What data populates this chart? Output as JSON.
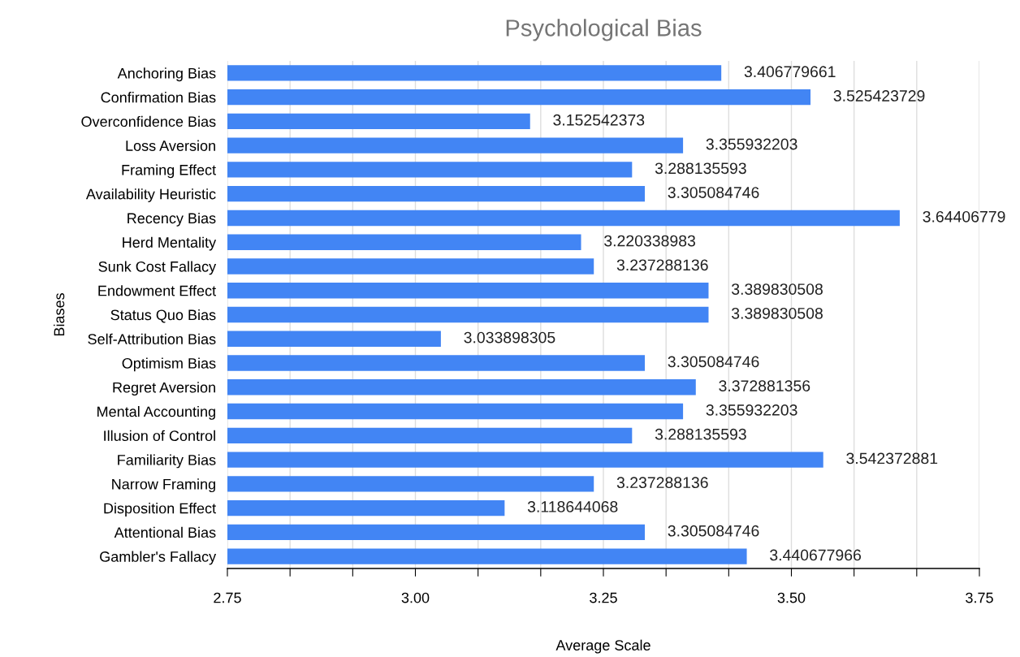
{
  "chart_data": {
    "type": "bar",
    "orientation": "horizontal",
    "title": "Psychological Bias",
    "xlabel": "Average Scale",
    "ylabel": "Biases",
    "categories": [
      "Anchoring Bias",
      "Confirmation Bias",
      "Overconfidence Bias",
      "Loss Aversion",
      "Framing Effect",
      "Availability Heuristic",
      "Recency Bias",
      "Herd Mentality",
      "Sunk Cost Fallacy",
      "Endowment Effect",
      "Status Quo Bias",
      "Self-Attribution Bias",
      "Optimism Bias",
      "Regret Aversion",
      "Mental Accounting",
      "Illusion of Control",
      "Familiarity Bias",
      "Narrow Framing",
      "Disposition Effect",
      "Attentional Bias",
      "Gambler's Fallacy"
    ],
    "values": [
      3.406779661,
      3.525423729,
      3.152542373,
      3.355932203,
      3.288135593,
      3.305084746,
      3.64406779,
      3.220338983,
      3.237288136,
      3.389830508,
      3.389830508,
      3.033898305,
      3.305084746,
      3.372881356,
      3.355932203,
      3.288135593,
      3.542372881,
      3.237288136,
      3.118644068,
      3.305084746,
      3.440677966
    ],
    "color": "#4285f4",
    "data_labels": true,
    "xlim": [
      2.75,
      3.75
    ],
    "xticks": [
      {
        "value": 2.75,
        "label": "2.75"
      },
      {
        "value": 2.833333,
        "label": null
      },
      {
        "value": 2.916667,
        "label": null
      },
      {
        "value": 3.0,
        "label": "3.00"
      },
      {
        "value": 3.083333,
        "label": null
      },
      {
        "value": 3.166667,
        "label": null
      },
      {
        "value": 3.25,
        "label": "3.25"
      },
      {
        "value": 3.333333,
        "label": null
      },
      {
        "value": 3.416667,
        "label": null
      },
      {
        "value": 3.5,
        "label": "3.50"
      },
      {
        "value": 3.583333,
        "label": null
      },
      {
        "value": 3.666667,
        "label": null
      },
      {
        "value": 3.75,
        "label": "3.75"
      }
    ],
    "grid": "x",
    "legend": false
  }
}
